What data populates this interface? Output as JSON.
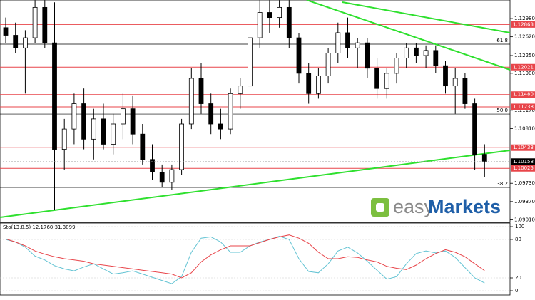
{
  "chart_data": [
    {
      "type": "candlestick",
      "ylim": [
        1.0896,
        1.13346
      ],
      "yticks": [
        {
          "value": 1.1298,
          "label": "1.12980"
        },
        {
          "value": 1.1262,
          "label": "1.12620"
        },
        {
          "value": 1.1225,
          "label": "1.12250"
        },
        {
          "value": 1.119,
          "label": "1.11900"
        },
        {
          "value": 1.1117,
          "label": "1.11170"
        },
        {
          "value": 1.1081,
          "label": "1.10810"
        },
        {
          "value": 1.0973,
          "label": "1.09730"
        },
        {
          "value": 1.0937,
          "label": "1.09370"
        },
        {
          "value": 1.0901,
          "label": "1.09010"
        }
      ],
      "levels": [
        1.12863,
        1.12021,
        {
          "value": 1.1148,
          "label": "1.11480"
        },
        1.11238,
        1.10433,
        1.10025
      ],
      "level_color": "#e8454a",
      "fib_levels": [
        {
          "label": "61.8",
          "price": 1.12474
        },
        {
          "label": "50.0",
          "price": 1.11096
        },
        {
          "label": "38.2",
          "price": 1.09648
        }
      ],
      "current_price": 1.10158,
      "candles": [
        {
          "open": 1.128,
          "high": 1.13,
          "low": 1.125,
          "close": 1.1265
        },
        {
          "open": 1.1265,
          "high": 1.129,
          "low": 1.123,
          "close": 1.124
        },
        {
          "open": 1.124,
          "high": 1.1275,
          "low": 1.115,
          "close": 1.126
        },
        {
          "open": 1.126,
          "high": 1.1334,
          "low": 1.125,
          "close": 1.132
        },
        {
          "open": 1.132,
          "high": 1.1334,
          "low": 1.124,
          "close": 1.125
        },
        {
          "open": 1.125,
          "high": 1.133,
          "low": 1.092,
          "close": 1.104
        },
        {
          "open": 1.104,
          "high": 1.11,
          "low": 1.1,
          "close": 1.108
        },
        {
          "open": 1.108,
          "high": 1.115,
          "low": 1.105,
          "close": 1.113
        },
        {
          "open": 1.113,
          "high": 1.116,
          "low": 1.104,
          "close": 1.106
        },
        {
          "open": 1.106,
          "high": 1.112,
          "low": 1.102,
          "close": 1.11
        },
        {
          "open": 1.11,
          "high": 1.113,
          "low": 1.104,
          "close": 1.105
        },
        {
          "open": 1.105,
          "high": 1.111,
          "low": 1.103,
          "close": 1.109
        },
        {
          "open": 1.109,
          "high": 1.115,
          "low": 1.106,
          "close": 1.112
        },
        {
          "open": 1.112,
          "high": 1.1145,
          "low": 1.105,
          "close": 1.107
        },
        {
          "open": 1.107,
          "high": 1.109,
          "low": 1.101,
          "close": 1.102
        },
        {
          "open": 1.102,
          "high": 1.105,
          "low": 1.098,
          "close": 1.0995
        },
        {
          "open": 1.0995,
          "high": 1.101,
          "low": 1.0965,
          "close": 1.0975
        },
        {
          "open": 1.0975,
          "high": 1.101,
          "low": 1.096,
          "close": 1.1
        },
        {
          "open": 1.1,
          "high": 1.11,
          "low": 1.099,
          "close": 1.109
        },
        {
          "open": 1.109,
          "high": 1.12,
          "low": 1.108,
          "close": 1.118
        },
        {
          "open": 1.118,
          "high": 1.121,
          "low": 1.111,
          "close": 1.113
        },
        {
          "open": 1.113,
          "high": 1.115,
          "low": 1.107,
          "close": 1.109
        },
        {
          "open": 1.109,
          "high": 1.112,
          "low": 1.106,
          "close": 1.108
        },
        {
          "open": 1.108,
          "high": 1.116,
          "low": 1.107,
          "close": 1.115
        },
        {
          "open": 1.115,
          "high": 1.118,
          "low": 1.112,
          "close": 1.1165
        },
        {
          "open": 1.1165,
          "high": 1.128,
          "low": 1.115,
          "close": 1.126
        },
        {
          "open": 1.126,
          "high": 1.1334,
          "low": 1.124,
          "close": 1.131
        },
        {
          "open": 1.131,
          "high": 1.1334,
          "low": 1.127,
          "close": 1.13
        },
        {
          "open": 1.13,
          "high": 1.1334,
          "low": 1.128,
          "close": 1.132
        },
        {
          "open": 1.132,
          "high": 1.1334,
          "low": 1.124,
          "close": 1.126
        },
        {
          "open": 1.126,
          "high": 1.127,
          "low": 1.117,
          "close": 1.119
        },
        {
          "open": 1.119,
          "high": 1.121,
          "low": 1.113,
          "close": 1.115
        },
        {
          "open": 1.115,
          "high": 1.12,
          "low": 1.114,
          "close": 1.1185
        },
        {
          "open": 1.1185,
          "high": 1.124,
          "low": 1.117,
          "close": 1.123
        },
        {
          "open": 1.123,
          "high": 1.129,
          "low": 1.121,
          "close": 1.127
        },
        {
          "open": 1.127,
          "high": 1.13,
          "low": 1.122,
          "close": 1.124
        },
        {
          "open": 1.124,
          "high": 1.126,
          "low": 1.12,
          "close": 1.125
        },
        {
          "open": 1.125,
          "high": 1.126,
          "low": 1.118,
          "close": 1.12
        },
        {
          "open": 1.12,
          "high": 1.122,
          "low": 1.114,
          "close": 1.116
        },
        {
          "open": 1.116,
          "high": 1.12,
          "low": 1.114,
          "close": 1.119
        },
        {
          "open": 1.119,
          "high": 1.123,
          "low": 1.117,
          "close": 1.122
        },
        {
          "open": 1.122,
          "high": 1.125,
          "low": 1.12,
          "close": 1.124
        },
        {
          "open": 1.124,
          "high": 1.125,
          "low": 1.121,
          "close": 1.1225
        },
        {
          "open": 1.1225,
          "high": 1.1245,
          "low": 1.12,
          "close": 1.1235
        },
        {
          "open": 1.1235,
          "high": 1.1245,
          "low": 1.119,
          "close": 1.1205
        },
        {
          "open": 1.1205,
          "high": 1.1215,
          "low": 1.115,
          "close": 1.1165
        },
        {
          "open": 1.1165,
          "high": 1.12,
          "low": 1.111,
          "close": 1.118
        },
        {
          "open": 1.118,
          "high": 1.119,
          "low": 1.112,
          "close": 1.113
        },
        {
          "open": 1.113,
          "high": 1.114,
          "low": 1.1,
          "close": 1.103
        },
        {
          "open": 1.103,
          "high": 1.105,
          "low": 1.0985,
          "close": 1.1016
        }
      ],
      "brand": {
        "part1": "easy",
        "part2": "Markets"
      }
    },
    {
      "type": "line",
      "title": "Sto(13,8,5) 12.1760 31.3899",
      "ylim": [
        0,
        100
      ],
      "yticks": [
        100,
        80,
        20,
        0
      ],
      "series": [
        {
          "color": "#62c3d3",
          "values": [
            80,
            76,
            68,
            54,
            48,
            39,
            34,
            31,
            37,
            42,
            34,
            26,
            28,
            31,
            26,
            21,
            16,
            11,
            22,
            60,
            82,
            84,
            76,
            60,
            60,
            70,
            76,
            80,
            85,
            80,
            50,
            30,
            28,
            42,
            62,
            68,
            59,
            46,
            32,
            18,
            22,
            42,
            58,
            62,
            59,
            62,
            52,
            36,
            20,
            12.176
          ]
        },
        {
          "color": "#e8454a",
          "values": [
            81,
            76,
            70,
            62,
            57,
            53,
            50,
            48,
            46,
            42,
            40,
            38,
            36,
            34,
            32,
            30,
            28,
            26,
            20,
            28,
            45,
            56,
            64,
            70,
            70,
            70,
            75,
            80,
            84,
            87,
            82,
            74,
            60,
            50,
            50,
            53,
            52,
            48,
            45,
            38,
            35,
            33,
            40,
            50,
            58,
            64,
            60,
            53,
            42,
            31.3899
          ]
        }
      ]
    }
  ]
}
